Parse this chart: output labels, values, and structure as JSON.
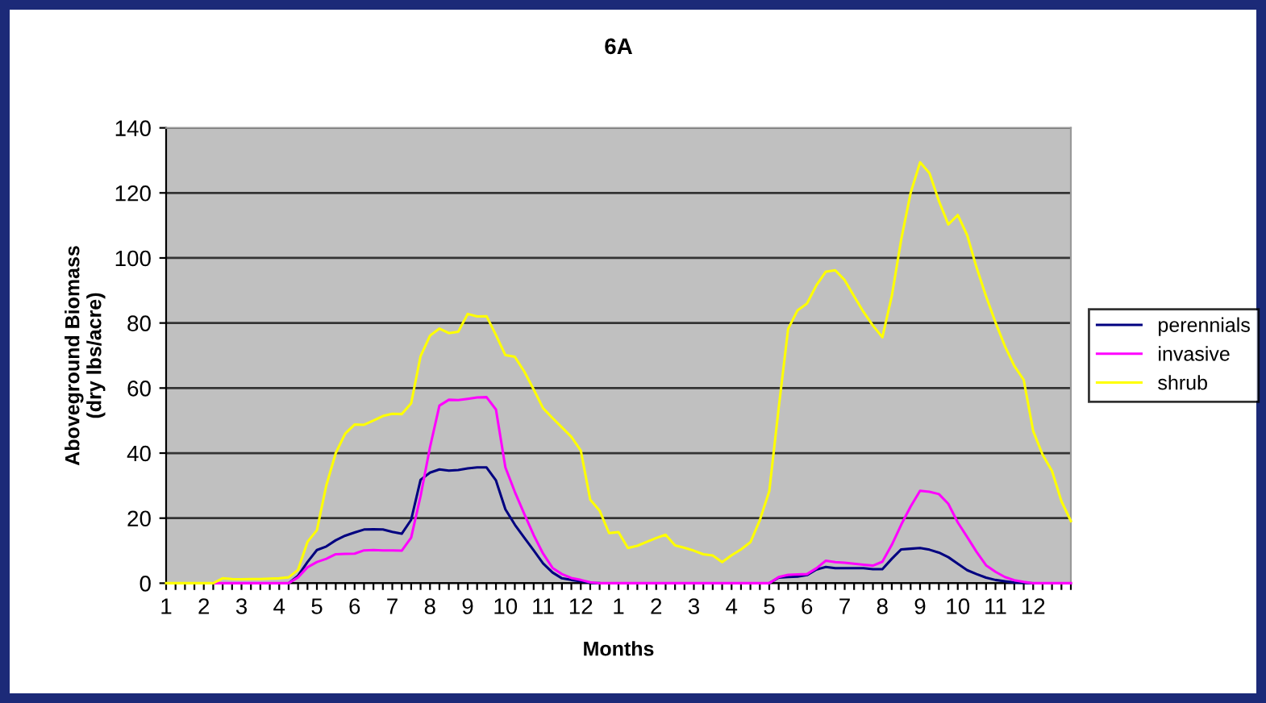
{
  "chart_data": {
    "type": "line",
    "title": "6A",
    "xlabel": "Months",
    "ylabel": "Aboveground Biomass\n(dry lbs/acre)",
    "ylim": [
      0,
      140
    ],
    "yticks": [
      0,
      20,
      40,
      60,
      80,
      100,
      120,
      140
    ],
    "categories": [
      "1",
      null,
      null,
      null,
      "2",
      null,
      null,
      null,
      "3",
      null,
      null,
      null,
      "4",
      null,
      null,
      null,
      "5",
      null,
      null,
      null,
      "6",
      null,
      null,
      null,
      "7",
      null,
      null,
      null,
      "8",
      null,
      null,
      null,
      "9",
      null,
      null,
      null,
      "10",
      null,
      null,
      null,
      "11",
      null,
      null,
      null,
      "12",
      null,
      null,
      null,
      "1",
      null,
      null,
      null,
      "2",
      null,
      null,
      null,
      "3",
      null,
      null,
      null,
      "4",
      null,
      null,
      null,
      "5",
      null,
      null,
      null,
      "6",
      null,
      null,
      null,
      "7",
      null,
      null,
      null,
      "8",
      null,
      null,
      null,
      "9",
      null,
      null,
      null,
      "10",
      null,
      null,
      null,
      "11",
      null,
      null,
      null,
      "12",
      null,
      null,
      null,
      null
    ],
    "grid": "y",
    "legend": "right",
    "marker": "none",
    "line_style": "solid",
    "series": [
      {
        "name": "perennials",
        "color": "#000080",
        "values": [
          null,
          null,
          null,
          null,
          null,
          null,
          null,
          null,
          null,
          null,
          null,
          null,
          null,
          0,
          2.3,
          6.5,
          10.2,
          11.3,
          13.2,
          14.6,
          15.6,
          16.5,
          16.6,
          16.5,
          15.8,
          15.2,
          19.5,
          31.8,
          34.0,
          35.0,
          34.6,
          34.8,
          35.3,
          35.6,
          35.6,
          31.6,
          22.7,
          18.0,
          14.0,
          10.1,
          6.1,
          3.3,
          1.5,
          1.0,
          0.6,
          0.1,
          0,
          null,
          null,
          null,
          null,
          null,
          null,
          null,
          null,
          null,
          null,
          null,
          null,
          null,
          null,
          null,
          null,
          null,
          0,
          1.7,
          1.9,
          2.0,
          2.5,
          4.2,
          5.0,
          4.6,
          4.6,
          4.6,
          4.6,
          4.3,
          4.3,
          7.5,
          10.4,
          10.6,
          10.8,
          10.3,
          9.4,
          8.0,
          6.0,
          4.0,
          2.8,
          1.7,
          1.0,
          0.6,
          0.2,
          0.1,
          0,
          null,
          null,
          null,
          null
        ]
      },
      {
        "name": "invasive",
        "color": "#ff00ff",
        "values": [
          null,
          null,
          null,
          null,
          null,
          0,
          0,
          0,
          0,
          0,
          0,
          0,
          0,
          0,
          1.8,
          4.9,
          6.5,
          7.5,
          8.9,
          9.0,
          9.1,
          10.1,
          10.2,
          10.1,
          10.1,
          10.0,
          14.0,
          26.8,
          41.8,
          54.6,
          56.4,
          56.3,
          56.7,
          57.1,
          57.2,
          53.4,
          35.6,
          28.1,
          21.3,
          14.8,
          9.1,
          4.7,
          2.8,
          1.6,
          1.0,
          0.3,
          0,
          0,
          0,
          0,
          0,
          0,
          0,
          0,
          0,
          0,
          0,
          0,
          0,
          0,
          0,
          0,
          0,
          0,
          0,
          1.9,
          2.6,
          2.7,
          2.8,
          4.6,
          6.9,
          6.5,
          6.3,
          6.0,
          5.7,
          5.4,
          6.6,
          11.8,
          18.0,
          23.6,
          28.4,
          28.1,
          27.4,
          24.4,
          18.7,
          14.2,
          9.6,
          5.5,
          3.5,
          1.9,
          0.9,
          0.4,
          0,
          0,
          0,
          0,
          0
        ]
      },
      {
        "name": "shrub",
        "color": "#ffff00",
        "values": [
          0,
          0,
          0,
          0,
          0,
          0,
          1.5,
          1.3,
          1.2,
          1.3,
          1.3,
          1.4,
          1.5,
          1.8,
          4.1,
          12.7,
          16.3,
          30.1,
          40,
          46,
          48.8,
          48.7,
          50,
          51.4,
          52.1,
          52,
          55.3,
          69.8,
          76.1,
          78.3,
          76.9,
          77.3,
          82.8,
          82,
          82.1,
          76.3,
          70.1,
          69.6,
          65.1,
          59.6,
          53.8,
          50.8,
          47.9,
          45,
          40.8,
          25.7,
          22.3,
          15.4,
          15.7,
          10.8,
          11.5,
          12.7,
          13.9,
          14.9,
          11.6,
          10.9,
          10,
          8.9,
          8.5,
          6.5,
          8.6,
          10.4,
          12.6,
          19.4,
          28.3,
          53.9,
          78.2,
          83.9,
          86,
          91.6,
          95.8,
          96.2,
          93.2,
          88.2,
          83.4,
          79.2,
          75.6,
          88.3,
          105.7,
          120,
          129.4,
          126.1,
          117.5,
          110.3,
          113.2,
          107,
          97,
          88.2,
          80.2,
          72.9,
          66.8,
          62.5,
          46.8,
          39.5,
          34.5,
          25.2,
          19.1
        ]
      }
    ]
  }
}
